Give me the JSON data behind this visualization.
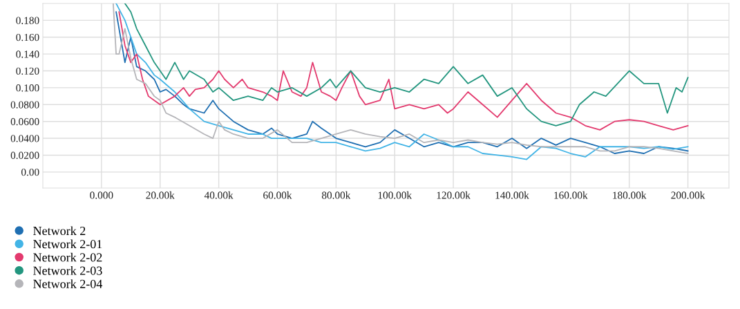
{
  "chart_data": {
    "type": "line",
    "xlim": [
      -20000,
      214000
    ],
    "xticks": [
      {
        "value": 0,
        "label": "0.000"
      },
      {
        "value": 20000,
        "label": "20.00k"
      },
      {
        "value": 40000,
        "label": "40.00k"
      },
      {
        "value": 60000,
        "label": "60.00k"
      },
      {
        "value": 80000,
        "label": "80.00k"
      },
      {
        "value": 100000,
        "label": "100.00k"
      },
      {
        "value": 120000,
        "label": "120.00k"
      },
      {
        "value": 140000,
        "label": "140.00k"
      },
      {
        "value": 160000,
        "label": "160.00k"
      },
      {
        "value": 180000,
        "label": "180.00k"
      },
      {
        "value": 200000,
        "label": "200.00k"
      }
    ],
    "ylim": [
      -0.019,
      0.2
    ],
    "yticks": [
      {
        "value": 0,
        "label": "0.00"
      },
      {
        "value": 0.02,
        "label": "0.0200"
      },
      {
        "value": 0.04,
        "label": "0.0400"
      },
      {
        "value": 0.06,
        "label": "0.0600"
      },
      {
        "value": 0.08,
        "label": "0.0800"
      },
      {
        "value": 0.1,
        "label": "0.100"
      },
      {
        "value": 0.12,
        "label": "0.120"
      },
      {
        "value": 0.14,
        "label": "0.140"
      },
      {
        "value": 0.16,
        "label": "0.160"
      },
      {
        "value": 0.18,
        "label": "0.180"
      }
    ],
    "grid": true,
    "legend": "bottom left",
    "line_style": "solid",
    "series": [
      {
        "name": "Network 2",
        "color": "#1f6fb2",
        "x": [
          5000,
          8000,
          10000,
          12000,
          15000,
          18000,
          20000,
          22000,
          25000,
          28000,
          30000,
          35000,
          38000,
          40000,
          45000,
          50000,
          55000,
          58000,
          60000,
          65000,
          70000,
          72000,
          75000,
          80000,
          85000,
          90000,
          95000,
          100000,
          105000,
          110000,
          115000,
          120000,
          125000,
          130000,
          135000,
          140000,
          145000,
          150000,
          155000,
          160000,
          165000,
          170000,
          175000,
          180000,
          185000,
          190000,
          195000,
          200000
        ],
        "values": [
          0.19,
          0.13,
          0.16,
          0.125,
          0.12,
          0.11,
          0.095,
          0.098,
          0.09,
          0.08,
          0.075,
          0.07,
          0.085,
          0.075,
          0.06,
          0.05,
          0.045,
          0.052,
          0.045,
          0.04,
          0.045,
          0.06,
          0.052,
          0.04,
          0.035,
          0.03,
          0.035,
          0.05,
          0.04,
          0.03,
          0.035,
          0.03,
          0.035,
          0.035,
          0.03,
          0.04,
          0.028,
          0.04,
          0.032,
          0.04,
          0.035,
          0.03,
          0.022,
          0.025,
          0.022,
          0.03,
          0.028,
          0.025
        ]
      },
      {
        "name": "Network 2-01",
        "color": "#42b4e6",
        "x": [
          5000,
          8000,
          10000,
          12000,
          15000,
          18000,
          20000,
          25000,
          30000,
          35000,
          40000,
          45000,
          50000,
          55000,
          58000,
          60000,
          65000,
          70000,
          75000,
          80000,
          85000,
          90000,
          95000,
          100000,
          105000,
          110000,
          115000,
          120000,
          125000,
          130000,
          135000,
          140000,
          145000,
          150000,
          155000,
          160000,
          165000,
          170000,
          175000,
          180000,
          185000,
          190000,
          195000,
          200000
        ],
        "values": [
          0.2,
          0.18,
          0.16,
          0.14,
          0.13,
          0.115,
          0.11,
          0.095,
          0.075,
          0.06,
          0.055,
          0.05,
          0.045,
          0.045,
          0.04,
          0.04,
          0.04,
          0.04,
          0.035,
          0.035,
          0.03,
          0.025,
          0.028,
          0.035,
          0.03,
          0.045,
          0.038,
          0.03,
          0.03,
          0.022,
          0.02,
          0.018,
          0.015,
          0.03,
          0.028,
          0.022,
          0.018,
          0.03,
          0.03,
          0.03,
          0.028,
          0.03,
          0.027,
          0.03
        ]
      },
      {
        "name": "Network 2-02",
        "color": "#e33a6e",
        "x": [
          6000,
          8000,
          10000,
          12000,
          14000,
          16000,
          18000,
          20000,
          25000,
          28000,
          30000,
          32000,
          35000,
          38000,
          40000,
          42000,
          45000,
          48000,
          50000,
          55000,
          58000,
          60000,
          62000,
          65000,
          68000,
          70000,
          72000,
          75000,
          78000,
          80000,
          82000,
          85000,
          88000,
          90000,
          95000,
          98000,
          100000,
          105000,
          110000,
          115000,
          118000,
          120000,
          125000,
          130000,
          135000,
          140000,
          145000,
          150000,
          155000,
          160000,
          165000,
          170000,
          175000,
          180000,
          185000,
          190000,
          195000,
          200000
        ],
        "values": [
          0.19,
          0.15,
          0.13,
          0.14,
          0.11,
          0.09,
          0.085,
          0.08,
          0.09,
          0.1,
          0.09,
          0.098,
          0.1,
          0.11,
          0.12,
          0.11,
          0.1,
          0.11,
          0.1,
          0.095,
          0.09,
          0.085,
          0.12,
          0.095,
          0.09,
          0.1,
          0.13,
          0.095,
          0.09,
          0.085,
          0.1,
          0.12,
          0.09,
          0.08,
          0.085,
          0.11,
          0.075,
          0.08,
          0.075,
          0.08,
          0.07,
          0.075,
          0.095,
          0.08,
          0.065,
          0.085,
          0.105,
          0.085,
          0.07,
          0.065,
          0.055,
          0.05,
          0.06,
          0.062,
          0.06,
          0.055,
          0.05,
          0.055
        ]
      },
      {
        "name": "Network 2-03",
        "color": "#23967f",
        "x": [
          8000,
          10000,
          12000,
          15000,
          18000,
          20000,
          22000,
          25000,
          28000,
          30000,
          35000,
          38000,
          40000,
          45000,
          50000,
          55000,
          58000,
          60000,
          65000,
          70000,
          75000,
          78000,
          80000,
          85000,
          90000,
          95000,
          100000,
          105000,
          110000,
          115000,
          120000,
          125000,
          130000,
          135000,
          140000,
          145000,
          150000,
          155000,
          160000,
          163000,
          168000,
          172000,
          176000,
          180000,
          185000,
          190000,
          193000,
          196000,
          198000,
          200000
        ],
        "values": [
          0.2,
          0.19,
          0.17,
          0.15,
          0.13,
          0.12,
          0.11,
          0.13,
          0.11,
          0.12,
          0.11,
          0.095,
          0.1,
          0.085,
          0.09,
          0.085,
          0.1,
          0.095,
          0.1,
          0.09,
          0.1,
          0.11,
          0.1,
          0.12,
          0.1,
          0.095,
          0.1,
          0.095,
          0.11,
          0.105,
          0.125,
          0.105,
          0.115,
          0.09,
          0.1,
          0.075,
          0.06,
          0.055,
          0.06,
          0.08,
          0.095,
          0.09,
          0.105,
          0.12,
          0.105,
          0.105,
          0.07,
          0.1,
          0.095,
          0.112
        ]
      },
      {
        "name": "Network 2-04",
        "color": "#b5b5b9",
        "x": [
          4000,
          5000,
          6000,
          8000,
          10000,
          12000,
          15000,
          18000,
          20000,
          22000,
          25000,
          30000,
          35000,
          38000,
          40000,
          42000,
          45000,
          50000,
          55000,
          60000,
          65000,
          70000,
          75000,
          80000,
          85000,
          90000,
          95000,
          100000,
          105000,
          110000,
          115000,
          120000,
          125000,
          130000,
          135000,
          140000,
          145000,
          150000,
          155000,
          160000,
          165000,
          170000,
          175000,
          180000,
          185000,
          190000,
          195000,
          200000
        ],
        "values": [
          0.2,
          0.14,
          0.14,
          0.17,
          0.135,
          0.11,
          0.105,
          0.09,
          0.085,
          0.07,
          0.065,
          0.055,
          0.045,
          0.04,
          0.06,
          0.05,
          0.045,
          0.04,
          0.04,
          0.05,
          0.035,
          0.035,
          0.04,
          0.045,
          0.05,
          0.045,
          0.042,
          0.04,
          0.045,
          0.035,
          0.038,
          0.035,
          0.038,
          0.035,
          0.033,
          0.035,
          0.032,
          0.03,
          0.03,
          0.03,
          0.03,
          0.025,
          0.025,
          0.03,
          0.03,
          0.028,
          0.025,
          0.022
        ]
      }
    ]
  }
}
